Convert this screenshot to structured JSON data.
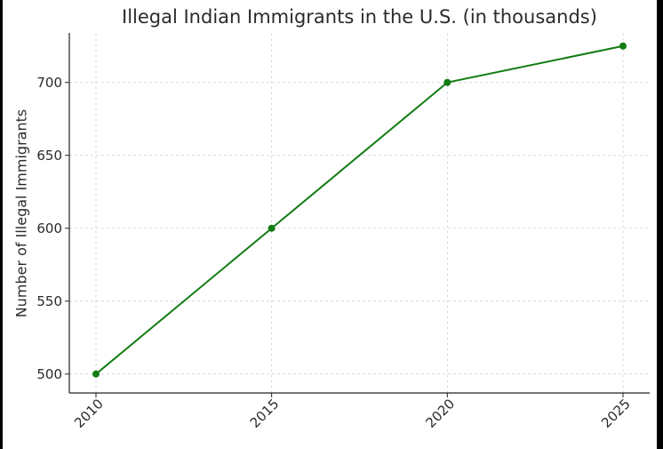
{
  "chart_data": {
    "type": "line",
    "title": "Illegal Indian Immigrants in the U.S. (in thousands)",
    "xlabel": "",
    "ylabel": "Number of Illegal Immigrants",
    "categories": [
      "2010",
      "2015",
      "2020",
      "2025"
    ],
    "series": [
      {
        "values": [
          500,
          600,
          700,
          725
        ],
        "color": "#127c12",
        "marker": "circle"
      }
    ],
    "x_tick_labels": [
      "2010",
      "2015",
      "2020",
      "2025"
    ],
    "x_tick_rotation_deg": 45,
    "y_ticks": [
      500,
      550,
      600,
      650,
      700
    ],
    "ylim": [
      487,
      734
    ],
    "grid": true,
    "grid_style": "dashed",
    "legend": "none"
  }
}
